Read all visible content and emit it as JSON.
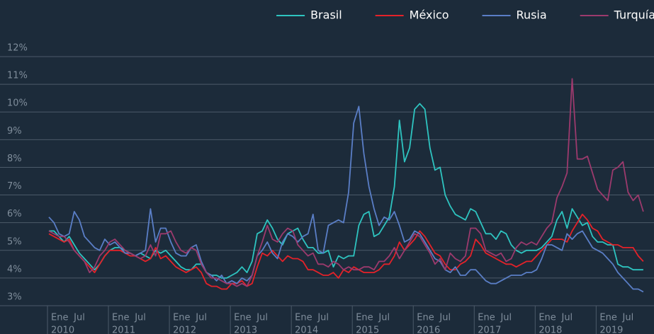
{
  "chart_data": {
    "type": "line",
    "legend": "top-right",
    "grid": true,
    "ylim": [
      3,
      12
    ],
    "yticks": [
      {
        "value": 3,
        "label": "3%"
      },
      {
        "value": 4,
        "label": "4%"
      },
      {
        "value": 5,
        "label": "5%"
      },
      {
        "value": 6,
        "label": "6%"
      },
      {
        "value": 7,
        "label": "7%"
      },
      {
        "value": 8,
        "label": "8%"
      },
      {
        "value": 9,
        "label": "9%"
      },
      {
        "value": 10,
        "label": "10%"
      },
      {
        "value": 11,
        "label": "11%"
      },
      {
        "value": 12,
        "label": "12%"
      }
    ],
    "x": [
      "2010-01",
      "2010-02",
      "2010-03",
      "2010-04",
      "2010-05",
      "2010-06",
      "2010-07",
      "2010-08",
      "2010-09",
      "2010-10",
      "2010-11",
      "2010-12",
      "2011-01",
      "2011-02",
      "2011-03",
      "2011-04",
      "2011-05",
      "2011-06",
      "2011-07",
      "2011-08",
      "2011-09",
      "2011-10",
      "2011-11",
      "2011-12",
      "2012-01",
      "2012-02",
      "2012-03",
      "2012-04",
      "2012-05",
      "2012-06",
      "2012-07",
      "2012-08",
      "2012-09",
      "2012-10",
      "2012-11",
      "2012-12",
      "2013-01",
      "2013-02",
      "2013-03",
      "2013-04",
      "2013-05",
      "2013-06",
      "2013-07",
      "2013-08",
      "2013-09",
      "2013-10",
      "2013-11",
      "2013-12",
      "2014-01",
      "2014-02",
      "2014-03",
      "2014-04",
      "2014-05",
      "2014-06",
      "2014-07",
      "2014-08",
      "2014-09",
      "2014-10",
      "2014-11",
      "2014-12",
      "2015-01",
      "2015-02",
      "2015-03",
      "2015-04",
      "2015-05",
      "2015-06",
      "2015-07",
      "2015-08",
      "2015-09",
      "2015-10",
      "2015-11",
      "2015-12",
      "2016-01",
      "2016-02",
      "2016-03",
      "2016-04",
      "2016-05",
      "2016-06",
      "2016-07",
      "2016-08",
      "2016-09",
      "2016-10",
      "2016-11",
      "2016-12",
      "2017-01",
      "2017-02",
      "2017-03",
      "2017-04",
      "2017-05",
      "2017-06",
      "2017-07",
      "2017-08",
      "2017-09",
      "2017-10",
      "2017-11",
      "2017-12",
      "2018-01",
      "2018-02",
      "2018-03",
      "2018-04",
      "2018-05",
      "2018-06",
      "2018-07",
      "2018-08",
      "2018-09",
      "2018-10",
      "2018-11",
      "2018-12",
      "2019-01",
      "2019-02",
      "2019-03",
      "2019-04",
      "2019-05",
      "2019-06",
      "2019-07",
      "2019-08",
      "2019-09",
      "2019-10"
    ],
    "xticks": [
      {
        "value": "2010-01",
        "label": "Ene",
        "sublabel": "2010"
      },
      {
        "value": "2010-07",
        "label": "Jul"
      },
      {
        "value": "2011-01",
        "label": "Ene",
        "sublabel": "2011"
      },
      {
        "value": "2011-07",
        "label": "Jul"
      },
      {
        "value": "2012-01",
        "label": "Ene",
        "sublabel": "2012"
      },
      {
        "value": "2012-07",
        "label": "Jul"
      },
      {
        "value": "2013-01",
        "label": "Ene",
        "sublabel": "2013"
      },
      {
        "value": "2013-07",
        "label": "Jul"
      },
      {
        "value": "2014-01",
        "label": "Ene",
        "sublabel": "2014"
      },
      {
        "value": "2014-07",
        "label": "Jul"
      },
      {
        "value": "2015-01",
        "label": "Ene",
        "sublabel": "2015"
      },
      {
        "value": "2015-07",
        "label": "Jul"
      },
      {
        "value": "2016-01",
        "label": "Ene",
        "sublabel": "2016"
      },
      {
        "value": "2016-07",
        "label": "Jul"
      },
      {
        "value": "2017-01",
        "label": "Ene",
        "sublabel": "2017"
      },
      {
        "value": "2017-07",
        "label": "Jul"
      },
      {
        "value": "2018-01",
        "label": "Ene",
        "sublabel": "2018"
      },
      {
        "value": "2018-07",
        "label": "Jul"
      },
      {
        "value": "2019-01",
        "label": "Ene",
        "sublabel": "2019"
      },
      {
        "value": "2019-07",
        "label": "Jul"
      }
    ],
    "series": [
      {
        "name": "Brasil",
        "color": "#2ec4c0",
        "values": [
          5.7,
          5.7,
          5.5,
          5.3,
          5.5,
          5.2,
          4.9,
          4.7,
          4.5,
          4.3,
          4.5,
          4.8,
          5.0,
          5.1,
          5.1,
          5.0,
          4.9,
          4.8,
          4.9,
          4.8,
          4.7,
          5.0,
          4.9,
          5.0,
          4.8,
          4.6,
          4.4,
          4.3,
          4.3,
          4.5,
          4.5,
          4.2,
          4.1,
          4.1,
          4.0,
          4.0,
          4.1,
          4.2,
          4.4,
          4.2,
          4.6,
          5.6,
          5.7,
          6.1,
          5.8,
          5.4,
          5.2,
          5.6,
          5.7,
          5.8,
          5.4,
          5.1,
          5.1,
          4.9,
          4.9,
          5.0,
          4.4,
          4.8,
          4.7,
          4.8,
          4.8,
          5.9,
          6.3,
          6.4,
          5.5,
          5.6,
          5.9,
          6.2,
          7.3,
          9.7,
          8.2,
          8.7,
          10.1,
          10.3,
          10.1,
          8.7,
          7.9,
          8.0,
          7.0,
          6.6,
          6.3,
          6.2,
          6.1,
          6.5,
          6.4,
          6.0,
          5.6,
          5.6,
          5.4,
          5.7,
          5.6,
          5.2,
          5.0,
          4.9,
          5.0,
          5.0,
          5.0,
          5.1,
          5.3,
          5.5,
          6.1,
          6.4,
          5.8,
          6.5,
          6.2,
          5.9,
          6.0,
          5.5,
          5.3,
          5.3,
          5.2,
          5.2,
          4.5,
          4.4,
          4.4,
          4.3,
          4.3,
          4.3
        ]
      },
      {
        "name": "México",
        "color": "#e42229",
        "values": [
          5.6,
          5.5,
          5.4,
          5.3,
          5.4,
          5.0,
          4.8,
          4.6,
          4.4,
          4.2,
          4.5,
          4.8,
          5.0,
          5.0,
          5.0,
          4.9,
          4.8,
          4.8,
          4.7,
          4.6,
          4.7,
          5.1,
          4.7,
          4.8,
          4.6,
          4.4,
          4.3,
          4.2,
          4.3,
          4.4,
          4.2,
          3.8,
          3.7,
          3.7,
          3.6,
          3.6,
          3.8,
          3.8,
          3.9,
          3.7,
          3.8,
          4.4,
          4.9,
          4.8,
          5.0,
          4.8,
          4.6,
          4.8,
          4.7,
          4.7,
          4.6,
          4.3,
          4.3,
          4.2,
          4.1,
          4.1,
          4.2,
          4.0,
          4.3,
          4.2,
          4.4,
          4.3,
          4.2,
          4.2,
          4.2,
          4.3,
          4.5,
          4.5,
          4.8,
          5.3,
          5.0,
          5.2,
          5.4,
          5.7,
          5.5,
          5.2,
          4.9,
          4.8,
          4.5,
          4.3,
          4.3,
          4.5,
          4.6,
          4.8,
          5.4,
          5.2,
          4.9,
          4.8,
          4.7,
          4.6,
          4.5,
          4.5,
          4.4,
          4.5,
          4.6,
          4.6,
          4.8,
          5.0,
          5.2,
          5.4,
          5.4,
          5.4,
          5.3,
          5.7,
          6.0,
          6.3,
          6.1,
          5.8,
          5.7,
          5.4,
          5.3,
          5.2,
          5.2,
          5.1,
          5.1,
          5.1,
          4.8,
          4.6
        ]
      },
      {
        "name": "Rusia",
        "color": "#5a7ec6",
        "values": [
          6.2,
          6.0,
          5.6,
          5.5,
          5.6,
          6.4,
          6.1,
          5.5,
          5.3,
          5.1,
          5.0,
          5.4,
          5.2,
          5.3,
          5.1,
          4.9,
          4.9,
          4.8,
          4.9,
          5.0,
          6.5,
          5.3,
          5.8,
          5.8,
          5.3,
          4.9,
          4.8,
          4.8,
          5.1,
          5.2,
          4.6,
          4.2,
          4.1,
          3.9,
          4.1,
          3.8,
          3.9,
          3.8,
          4.0,
          3.9,
          4.1,
          4.8,
          5.0,
          5.3,
          4.9,
          4.7,
          5.3,
          5.6,
          5.5,
          5.3,
          5.5,
          5.6,
          6.3,
          5.0,
          4.9,
          5.9,
          6.0,
          6.1,
          6.0,
          7.1,
          9.6,
          10.2,
          8.5,
          7.3,
          6.5,
          5.9,
          6.2,
          6.1,
          6.4,
          5.9,
          5.3,
          5.4,
          5.7,
          5.6,
          5.3,
          5.0,
          4.7,
          4.6,
          4.3,
          4.2,
          4.4,
          4.1,
          4.1,
          4.3,
          4.3,
          4.1,
          3.9,
          3.8,
          3.8,
          3.9,
          4.0,
          4.1,
          4.1,
          4.1,
          4.2,
          4.2,
          4.3,
          4.7,
          5.2,
          5.2,
          5.1,
          5.0,
          5.6,
          5.4,
          5.6,
          5.7,
          5.4,
          5.1,
          5.0,
          4.9,
          4.7,
          4.5,
          4.2,
          4.0,
          3.8,
          3.6,
          3.6,
          3.5
        ]
      },
      {
        "name": "Turquía",
        "color": "#9c3a6d",
        "values": [
          5.7,
          5.6,
          5.5,
          5.5,
          5.3,
          5.0,
          4.8,
          4.6,
          4.2,
          4.4,
          4.8,
          5.0,
          5.3,
          5.4,
          5.2,
          5.0,
          4.9,
          4.8,
          4.7,
          4.8,
          5.2,
          4.8,
          5.6,
          5.6,
          5.7,
          5.3,
          5.0,
          4.9,
          5.1,
          5.0,
          4.5,
          4.2,
          4.0,
          4.0,
          3.9,
          3.8,
          3.8,
          3.7,
          3.8,
          3.7,
          4.1,
          4.8,
          5.3,
          5.9,
          5.4,
          5.3,
          5.6,
          5.8,
          5.7,
          5.2,
          5.0,
          4.8,
          4.9,
          4.5,
          4.5,
          4.4,
          4.6,
          4.5,
          4.3,
          4.4,
          4.3,
          4.3,
          4.4,
          4.4,
          4.3,
          4.6,
          4.6,
          4.8,
          5.1,
          4.7,
          5.0,
          5.3,
          5.6,
          5.5,
          5.2,
          4.9,
          4.5,
          4.7,
          4.3,
          4.9,
          4.7,
          4.6,
          4.8,
          5.8,
          5.8,
          5.6,
          5.0,
          4.9,
          4.8,
          4.9,
          4.6,
          4.7,
          5.1,
          5.3,
          5.2,
          5.3,
          5.2,
          5.5,
          5.8,
          6.0,
          6.9,
          7.3,
          7.8,
          11.2,
          8.3,
          8.3,
          8.4,
          7.8,
          7.2,
          7.0,
          6.8,
          7.9,
          8.0,
          8.2,
          7.1,
          6.8,
          7.0,
          6.4
        ]
      }
    ]
  }
}
